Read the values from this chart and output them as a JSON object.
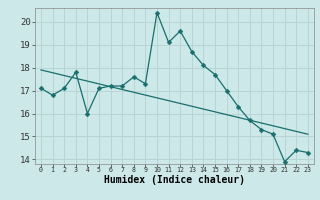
{
  "xlabel": "Humidex (Indice chaleur)",
  "bg_color": "#cce8e8",
  "grid_color": "#b8d4d4",
  "line_color": "#1a6e6e",
  "xlim": [
    -0.5,
    23.5
  ],
  "ylim": [
    13.8,
    20.6
  ],
  "yticks": [
    14,
    15,
    16,
    17,
    18,
    19,
    20
  ],
  "xticks": [
    0,
    1,
    2,
    3,
    4,
    5,
    6,
    7,
    8,
    9,
    10,
    11,
    12,
    13,
    14,
    15,
    16,
    17,
    18,
    19,
    20,
    21,
    22,
    23
  ],
  "series1_x": [
    0,
    1,
    2,
    3,
    4,
    5,
    6,
    7,
    8,
    9,
    10,
    11,
    12,
    13,
    14,
    15,
    16,
    17,
    18,
    19,
    20,
    21,
    22,
    23
  ],
  "series1_y": [
    17.1,
    16.8,
    17.1,
    17.8,
    16.0,
    17.1,
    17.2,
    17.2,
    17.6,
    17.3,
    20.4,
    19.1,
    19.6,
    18.7,
    18.1,
    17.7,
    17.0,
    16.3,
    15.7,
    15.3,
    15.1,
    13.9,
    14.4,
    14.3
  ],
  "series2_x": [
    0,
    23
  ],
  "series2_y": [
    17.9,
    15.1
  ],
  "markersize": 2.5,
  "linewidth": 0.9
}
